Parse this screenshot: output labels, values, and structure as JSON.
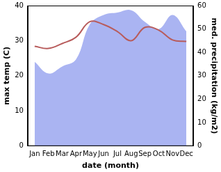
{
  "chart_data": {
    "type": "line",
    "x_label": "date (month)",
    "y_label": "max temp (C)",
    "y2_label": "med. precipitation (kg/m2)",
    "categories": [
      "Jan",
      "Feb",
      "Mar",
      "Apr",
      "May",
      "Jun",
      "Jul",
      "Aug",
      "Sep",
      "Oct",
      "Nov",
      "Dec"
    ],
    "series": [
      {
        "name": "max temp",
        "type": "line",
        "color": "#b85c5c",
        "marker": "none",
        "values": [
          28.4,
          27.8,
          29.2,
          31,
          35.4,
          34.6,
          32.6,
          30,
          33.8,
          33,
          30.2,
          29.8
        ]
      },
      {
        "name": "med. precipitation",
        "type": "area",
        "color": "#aab4f2",
        "axis": "y2",
        "marker": "none",
        "values": [
          36,
          31,
          34,
          37,
          52,
          56,
          57,
          58,
          53,
          50,
          56,
          49
        ]
      }
    ],
    "ylim": [
      0,
      40
    ],
    "yticks": [
      0,
      10,
      20,
      30,
      40
    ],
    "y2lim": [
      0,
      60
    ],
    "y2ticks": [
      0,
      10,
      20,
      30,
      40,
      50,
      60
    ],
    "grid": false
  }
}
